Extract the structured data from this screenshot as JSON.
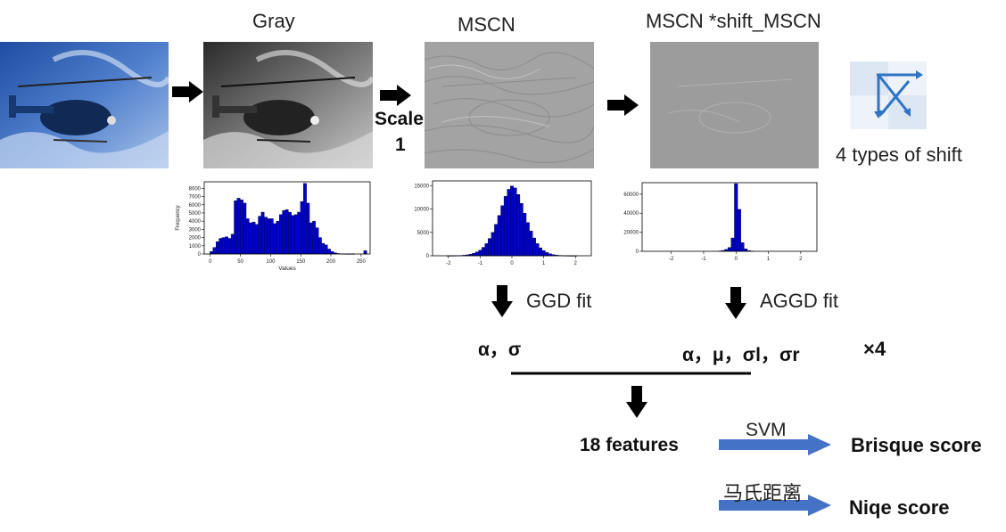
{
  "labels": {
    "gray": "Gray",
    "mscn": "MSCN",
    "mscn_shift": "MSCN *shift_MSCN",
    "scale": "Scale",
    "scale_num": "1",
    "shift_types": "4 types of shift",
    "ggd_fit": "GGD fit",
    "aggd_fit": "AGGD fit",
    "ggd_params": "α，σ",
    "aggd_params": "α，μ，σl，σr",
    "times4": "×4",
    "features": "18 features",
    "svm": "SVM",
    "brisque": "Brisque score",
    "mahalanobis": "马氏距离",
    "niqe": "Niqe score"
  },
  "colors": {
    "bar": "#0000cc",
    "arrow_blue": "#4472c4",
    "arrow_black": "#000000",
    "shift_icon_bg": "#dde6f3",
    "shift_icon_arrow": "#2e75c6"
  },
  "chart_data": [
    {
      "type": "bar",
      "xlabel": "Values",
      "ylabel": "Frequency",
      "xlim": [
        -10,
        265
      ],
      "ylim": [
        0,
        8800
      ],
      "xticks": [
        0,
        50,
        100,
        150,
        200,
        250
      ],
      "yticks": [
        0,
        1000,
        2000,
        3000,
        4000,
        5000,
        6000,
        7000,
        8000
      ],
      "x": [
        2,
        7,
        12,
        17,
        22,
        27,
        32,
        37,
        42,
        47,
        52,
        57,
        62,
        67,
        72,
        77,
        82,
        87,
        92,
        97,
        102,
        107,
        112,
        117,
        122,
        127,
        132,
        137,
        142,
        147,
        152,
        157,
        162,
        167,
        172,
        177,
        182,
        187,
        192,
        197,
        202,
        207,
        212,
        217,
        222,
        227,
        232,
        237,
        242,
        247,
        252,
        257
      ],
      "values": [
        300,
        800,
        1500,
        1900,
        2000,
        2100,
        1900,
        2400,
        6500,
        6800,
        6600,
        6200,
        4300,
        3800,
        3900,
        3600,
        4600,
        5100,
        4500,
        4300,
        4300,
        3700,
        4000,
        4800,
        5300,
        5400,
        5100,
        4700,
        4800,
        5100,
        6400,
        8600,
        6200,
        3800,
        4000,
        3200,
        2000,
        1300,
        1100,
        600,
        300,
        150,
        60,
        30,
        20,
        10,
        10,
        10,
        0,
        0,
        0,
        400
      ]
    },
    {
      "type": "bar",
      "xlabel": "",
      "ylabel": "",
      "xlim": [
        -2.5,
        2.5
      ],
      "ylim": [
        0,
        16000
      ],
      "xticks": [
        -2,
        -1,
        0,
        1,
        2
      ],
      "yticks": [
        0,
        5000,
        10000,
        15000
      ],
      "x": [
        -2.0,
        -1.9,
        -1.8,
        -1.7,
        -1.6,
        -1.5,
        -1.4,
        -1.3,
        -1.2,
        -1.1,
        -1.0,
        -0.9,
        -0.8,
        -0.7,
        -0.6,
        -0.5,
        -0.4,
        -0.3,
        -0.2,
        -0.1,
        0.0,
        0.1,
        0.2,
        0.3,
        0.4,
        0.5,
        0.6,
        0.7,
        0.8,
        0.9,
        1.0,
        1.1,
        1.2,
        1.3,
        1.4,
        1.5,
        1.6,
        1.7,
        1.8,
        1.9,
        2.0
      ],
      "values": [
        5,
        10,
        20,
        40,
        70,
        120,
        200,
        330,
        530,
        800,
        1200,
        1800,
        2600,
        3700,
        5000,
        6700,
        8600,
        10700,
        12700,
        14200,
        14900,
        14500,
        13100,
        11200,
        9100,
        7100,
        5300,
        3800,
        2600,
        1700,
        1100,
        700,
        420,
        250,
        140,
        80,
        40,
        20,
        10,
        5,
        5
      ]
    },
    {
      "type": "bar",
      "xlabel": "",
      "ylabel": "",
      "xlim": [
        -2.9,
        2.5
      ],
      "ylim": [
        0,
        72000
      ],
      "xticks": [
        -2,
        -1,
        0,
        1,
        2
      ],
      "yticks": [
        0,
        20000,
        40000,
        60000
      ],
      "x": [
        -0.5,
        -0.4,
        -0.3,
        -0.2,
        -0.1,
        0.0,
        0.1,
        0.2,
        0.3,
        0.4,
        0.5
      ],
      "values": [
        300,
        900,
        2000,
        4000,
        14000,
        71000,
        44000,
        9000,
        2500,
        800,
        300
      ]
    }
  ]
}
